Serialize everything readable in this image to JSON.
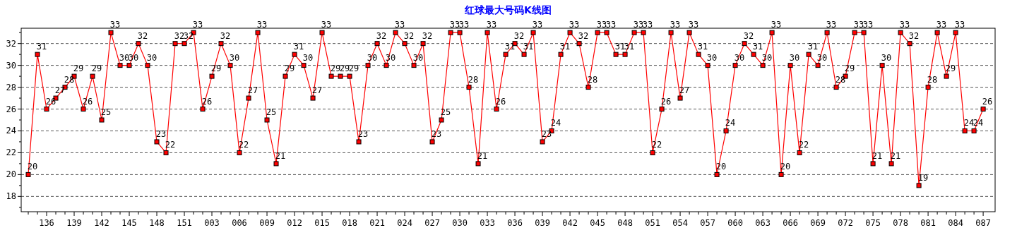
{
  "chart_data": {
    "type": "line",
    "title": "红球最大号码K线图",
    "categories": [
      null,
      null,
      "136",
      null,
      null,
      "139",
      null,
      null,
      "142",
      null,
      null,
      "145",
      null,
      null,
      "148",
      null,
      null,
      "151",
      null,
      null,
      "003",
      null,
      null,
      "006",
      null,
      null,
      "009",
      null,
      null,
      "012",
      null,
      null,
      "015",
      null,
      null,
      "018",
      null,
      null,
      "021",
      null,
      null,
      "024",
      null,
      null,
      "027",
      null,
      null,
      "030",
      null,
      null,
      "033",
      null,
      null,
      "036",
      null,
      null,
      "039",
      null,
      null,
      "042",
      null,
      null,
      "045",
      null,
      null,
      "048",
      null,
      null,
      "051",
      null,
      null,
      "054",
      null,
      null,
      "057",
      null,
      null,
      "060",
      null,
      null,
      "063",
      null,
      null,
      "066",
      null,
      null,
      "069",
      null,
      null,
      "072",
      null,
      null,
      "075",
      null,
      null,
      "078",
      null,
      null,
      "081",
      null,
      null,
      "084",
      null,
      null,
      "087"
    ],
    "series": [
      {
        "color": "#ff0000",
        "values": [
          20,
          31,
          26,
          27,
          28,
          29,
          26,
          29,
          25,
          33,
          30,
          30,
          32,
          30,
          23,
          22,
          32,
          32,
          33,
          26,
          29,
          32,
          30,
          22,
          27,
          33,
          25,
          21,
          29,
          31,
          30,
          27,
          33,
          29,
          29,
          29,
          23,
          30,
          32,
          30,
          33,
          32,
          30,
          32,
          23,
          25,
          33,
          33,
          28,
          21,
          33,
          26,
          31,
          32,
          31,
          33,
          23,
          24,
          31,
          33,
          32,
          28,
          33,
          33,
          31,
          31,
          33,
          33,
          22,
          26,
          33,
          27,
          33,
          31,
          30,
          20,
          24,
          30,
          32,
          31,
          30,
          33,
          20,
          30,
          22,
          31,
          30,
          33,
          28,
          29,
          33,
          33,
          21,
          30,
          21,
          33,
          32,
          19,
          28,
          33,
          29,
          33,
          24,
          24,
          26
        ]
      }
    ],
    "ylim": [
      16.6,
      33.4
    ],
    "yticks": [
      {
        "value": 17,
        "label": null
      },
      18,
      {
        "value": 19,
        "label": null
      },
      20,
      {
        "value": 21,
        "label": null
      },
      22,
      {
        "value": 23,
        "label": null
      },
      24,
      {
        "value": 25,
        "label": null
      },
      26,
      {
        "value": 27,
        "label": null
      },
      28,
      {
        "value": 29,
        "label": null
      },
      30,
      {
        "value": 31,
        "label": null
      },
      32,
      {
        "value": 33,
        "label": null
      }
    ],
    "grid": "y",
    "marker": "square",
    "line_style": "solid",
    "data_labels": true
  }
}
